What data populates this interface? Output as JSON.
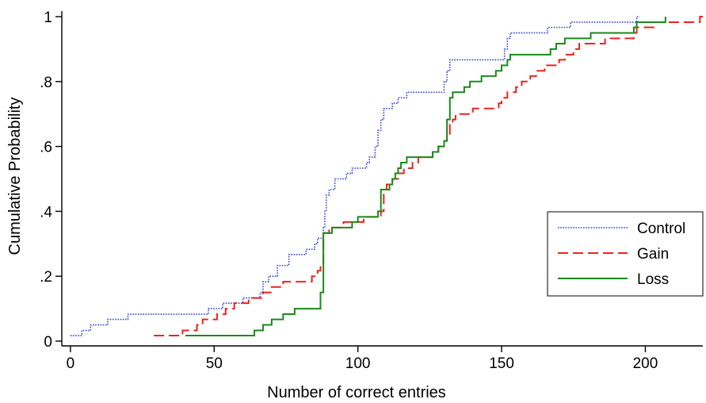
{
  "chart_data": {
    "type": "line",
    "step": true,
    "xlabel": "Number of correct entries",
    "ylabel": "Cumulative Probability",
    "xlim": [
      -3,
      220
    ],
    "ylim": [
      0,
      1
    ],
    "xticks": [
      0,
      50,
      100,
      150,
      200
    ],
    "xtick_labels": [
      "0",
      "50",
      "100",
      "150",
      "200"
    ],
    "yticks": [
      0,
      0.2,
      0.4,
      0.6,
      0.8,
      1
    ],
    "ytick_labels": [
      "0",
      ".2",
      ".4",
      ".6",
      ".8",
      "1"
    ],
    "grid": false,
    "legend_position": "right",
    "series": [
      {
        "name": "Control",
        "color": "#3344dd",
        "dash": "dotted",
        "points": [
          [
            0,
            0.017
          ],
          [
            4,
            0.033
          ],
          [
            7,
            0.05
          ],
          [
            12,
            0.05
          ],
          [
            13,
            0.067
          ],
          [
            20,
            0.083
          ],
          [
            43,
            0.083
          ],
          [
            48,
            0.1
          ],
          [
            53,
            0.117
          ],
          [
            60,
            0.133
          ],
          [
            66,
            0.15
          ],
          [
            67,
            0.183
          ],
          [
            69,
            0.2
          ],
          [
            72,
            0.233
          ],
          [
            76,
            0.267
          ],
          [
            82,
            0.283
          ],
          [
            85,
            0.3
          ],
          [
            86,
            0.317
          ],
          [
            88,
            0.35
          ],
          [
            88.5,
            0.4
          ],
          [
            89,
            0.45
          ],
          [
            90,
            0.467
          ],
          [
            92,
            0.5
          ],
          [
            96,
            0.517
          ],
          [
            98,
            0.533
          ],
          [
            103,
            0.55
          ],
          [
            104,
            0.567
          ],
          [
            106,
            0.6
          ],
          [
            107,
            0.65
          ],
          [
            108,
            0.683
          ],
          [
            109,
            0.717
          ],
          [
            112,
            0.733
          ],
          [
            114,
            0.75
          ],
          [
            117,
            0.767
          ],
          [
            130,
            0.8
          ],
          [
            131,
            0.833
          ],
          [
            132,
            0.867
          ],
          [
            151,
            0.9
          ],
          [
            152,
            0.933
          ],
          [
            153,
            0.95
          ],
          [
            166,
            0.967
          ],
          [
            174,
            0.983
          ],
          [
            197,
            1.0
          ],
          [
            198,
            1.0
          ]
        ]
      },
      {
        "name": "Gain",
        "color": "#ee2222",
        "dash": "dashed",
        "points": [
          [
            29,
            0.017
          ],
          [
            39,
            0.033
          ],
          [
            44,
            0.05
          ],
          [
            46,
            0.067
          ],
          [
            51,
            0.083
          ],
          [
            54,
            0.1
          ],
          [
            57,
            0.117
          ],
          [
            62,
            0.133
          ],
          [
            67,
            0.15
          ],
          [
            70,
            0.167
          ],
          [
            74,
            0.183
          ],
          [
            84,
            0.2
          ],
          [
            86,
            0.217
          ],
          [
            87,
            0.233
          ],
          [
            88,
            0.333
          ],
          [
            90,
            0.35
          ],
          [
            95,
            0.367
          ],
          [
            102,
            0.383
          ],
          [
            108,
            0.4
          ],
          [
            109,
            0.467
          ],
          [
            110,
            0.483
          ],
          [
            112,
            0.5
          ],
          [
            114,
            0.517
          ],
          [
            116,
            0.533
          ],
          [
            119,
            0.55
          ],
          [
            121,
            0.567
          ],
          [
            126,
            0.583
          ],
          [
            128,
            0.6
          ],
          [
            130,
            0.617
          ],
          [
            131,
            0.633
          ],
          [
            132,
            0.667
          ],
          [
            133,
            0.683
          ],
          [
            134,
            0.7
          ],
          [
            140,
            0.717
          ],
          [
            149,
            0.733
          ],
          [
            150,
            0.75
          ],
          [
            152,
            0.767
          ],
          [
            155,
            0.783
          ],
          [
            157,
            0.8
          ],
          [
            160,
            0.817
          ],
          [
            162,
            0.833
          ],
          [
            165,
            0.85
          ],
          [
            170,
            0.867
          ],
          [
            172,
            0.883
          ],
          [
            175,
            0.9
          ],
          [
            177,
            0.917
          ],
          [
            186,
            0.933
          ],
          [
            196,
            0.95
          ],
          [
            197,
            0.967
          ],
          [
            203,
            0.983
          ],
          [
            219,
            1.0
          ],
          [
            220,
            1.0
          ]
        ]
      },
      {
        "name": "Loss",
        "color": "#1a8a1a",
        "dash": "solid",
        "points": [
          [
            40,
            0.017
          ],
          [
            64,
            0.033
          ],
          [
            67,
            0.05
          ],
          [
            70,
            0.067
          ],
          [
            74,
            0.083
          ],
          [
            78,
            0.1
          ],
          [
            87,
            0.15
          ],
          [
            88,
            0.333
          ],
          [
            91,
            0.35
          ],
          [
            98,
            0.367
          ],
          [
            100,
            0.383
          ],
          [
            107,
            0.4
          ],
          [
            108,
            0.467
          ],
          [
            111,
            0.483
          ],
          [
            112,
            0.5
          ],
          [
            113,
            0.517
          ],
          [
            114,
            0.533
          ],
          [
            115,
            0.55
          ],
          [
            117,
            0.567
          ],
          [
            126,
            0.583
          ],
          [
            128,
            0.6
          ],
          [
            130,
            0.617
          ],
          [
            131,
            0.683
          ],
          [
            132,
            0.75
          ],
          [
            133,
            0.767
          ],
          [
            137,
            0.783
          ],
          [
            139,
            0.8
          ],
          [
            143,
            0.817
          ],
          [
            148,
            0.833
          ],
          [
            150,
            0.85
          ],
          [
            152,
            0.867
          ],
          [
            153,
            0.883
          ],
          [
            167,
            0.9
          ],
          [
            169,
            0.917
          ],
          [
            172,
            0.933
          ],
          [
            181,
            0.95
          ],
          [
            196,
            0.967
          ],
          [
            197,
            0.983
          ],
          [
            207,
            1.0
          ]
        ]
      }
    ]
  }
}
